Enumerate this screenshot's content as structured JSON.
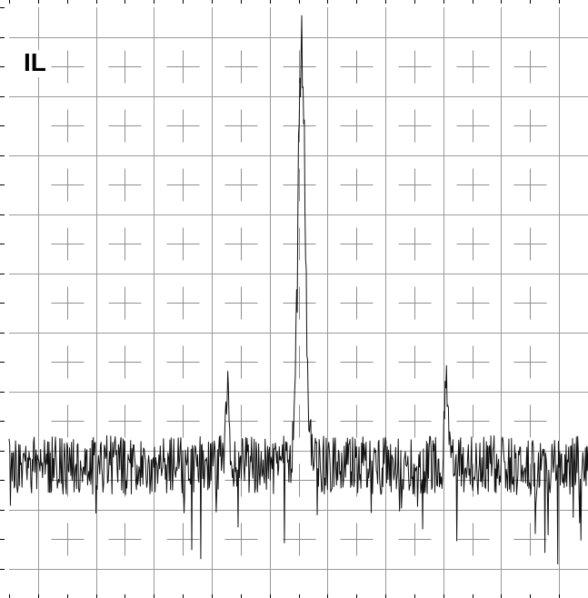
{
  "chart_data": {
    "type": "line",
    "label": "IL",
    "grid": true,
    "xlim": [
      0,
      10
    ],
    "ylim": [
      0,
      10
    ],
    "grid_divisions": {
      "x": 10,
      "y": 10
    },
    "series": [
      {
        "style": "noisy spectrum trace",
        "color": "#111111",
        "baseline": 2.2,
        "noise_amplitude": 0.5,
        "peaks": [
          {
            "x": 3.78,
            "y": 3.9,
            "width": 0.04
          },
          {
            "x": 5.05,
            "y": 9.8,
            "width": 0.09
          },
          {
            "x": 7.55,
            "y": 3.7,
            "width": 0.04
          }
        ]
      }
    ]
  }
}
